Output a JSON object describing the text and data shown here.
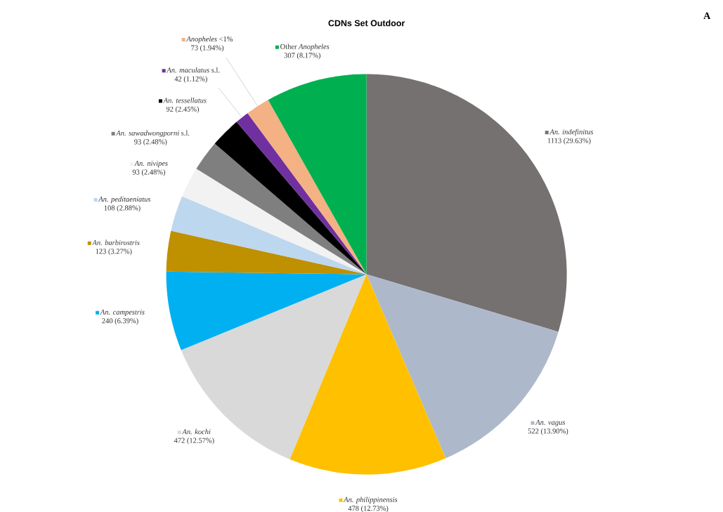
{
  "chart_data": {
    "type": "pie",
    "title": "CDNs Set Outdoor",
    "categories": [
      "*An. indefinitus*",
      "*An. vagus*",
      "*An. philippinensis*",
      "*An. kochi*",
      "*An. campestris*",
      "*An. barbirostris*",
      "*An. peditaeniatus*",
      "*An. nivipes*",
      "*An. sawadwongporni* s.l.",
      "*An. tessellatus*",
      "*An. maculatus* s.l.",
      "*Anopheles* <1%",
      "Other *Anopheles*"
    ],
    "values": [
      1113,
      522,
      478,
      472,
      240,
      123,
      108,
      93,
      93,
      92,
      42,
      73,
      307
    ],
    "value_labels": [
      "1113 (29.63%)",
      "522 (13.90%)",
      "478 (12.73%)",
      "472 (12.57%)",
      "240 (6.39%)",
      "123 (3.27%)",
      "108 (2.88%)",
      "93 (2.48%)",
      "93 (2.48%)",
      "92 (2.45%)",
      "42 (1.12%)",
      "73 (1.94%)",
      "307 (8.17%)"
    ],
    "colors": [
      "#767171",
      "#adb9ca",
      "#ffc000",
      "#d9d9d9",
      "#00b0f0",
      "#bf9000",
      "#bdd7ee",
      "#f2f2f2",
      "#7f7f7f",
      "#000000",
      "#7030a0",
      "#f4b183",
      "#00b050"
    ],
    "annotations": [
      "A"
    ],
    "legend": "left"
  }
}
